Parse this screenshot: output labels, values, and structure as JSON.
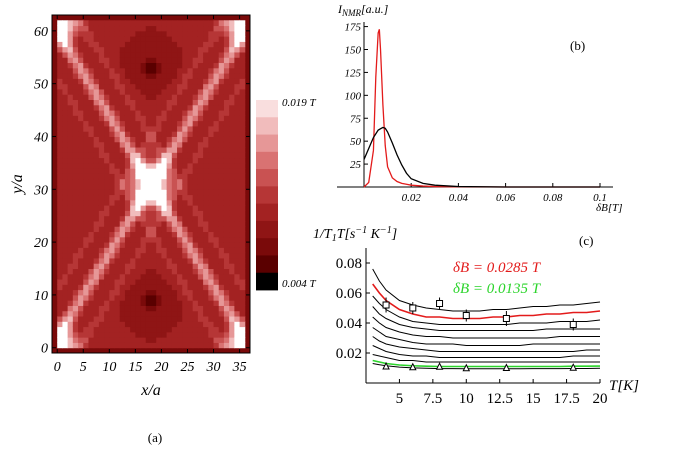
{
  "chart_data": [
    {
      "panel": "(a)",
      "type": "heatmap",
      "xlabel": "x/a",
      "ylabel": "y/a",
      "xticks": [
        "0",
        "5",
        "10",
        "15",
        "20",
        "25",
        "30",
        "35"
      ],
      "yticks": [
        "0",
        "10",
        "20",
        "30",
        "40",
        "50",
        "60"
      ],
      "xlim": [
        -1,
        37
      ],
      "ylim": [
        -1,
        63
      ],
      "colorbar": {
        "max_label": "0.019 T",
        "min_label": "0.004 T",
        "range_T": [
          0.004,
          0.019
        ],
        "steps": 10,
        "colors": [
          "#000000",
          "#5a0000",
          "#7a0a0a",
          "#8f1515",
          "#a32222",
          "#b63636",
          "#c95252",
          "#d97272",
          "#e69797",
          "#f1bcbc",
          "#f9dede"
        ]
      }
    },
    {
      "panel": "(b)",
      "type": "line",
      "ylabel": "I_NMR[a.u.]",
      "xlabel": "δB[T]",
      "xticks": [
        "0.02",
        "0.04",
        "0.06",
        "0.08",
        "0.1"
      ],
      "yticks": [
        "25",
        "50",
        "75",
        "100",
        "125",
        "150",
        "175"
      ],
      "xlim": [
        0,
        0.1
      ],
      "ylim": [
        0,
        180
      ],
      "series": [
        {
          "color": "#e31b1b",
          "x": [
            0,
            0.002,
            0.004,
            0.005,
            0.006,
            0.0065,
            0.007,
            0.008,
            0.009,
            0.01,
            0.012,
            0.014,
            0.016,
            0.018,
            0.02,
            0.025,
            0.03,
            0.04,
            0.06,
            0.1
          ],
          "values": [
            0,
            5,
            40,
            120,
            168,
            172,
            150,
            90,
            45,
            22,
            10,
            6,
            4,
            3,
            2,
            1,
            0.5,
            0.2,
            0,
            0
          ]
        },
        {
          "color": "#000000",
          "x": [
            0,
            0.002,
            0.004,
            0.006,
            0.008,
            0.009,
            0.01,
            0.012,
            0.014,
            0.016,
            0.018,
            0.02,
            0.025,
            0.03,
            0.04,
            0.06,
            0.1
          ],
          "values": [
            30,
            42,
            54,
            62,
            65,
            64,
            60,
            48,
            35,
            24,
            15,
            9,
            4,
            2,
            0.5,
            0,
            0
          ]
        }
      ]
    },
    {
      "panel": "(c)",
      "type": "line",
      "ylabel": "1/T1T[s^-1 K^-1]",
      "xlabel": "T[K]",
      "xticks": [
        "5",
        "7.5",
        "10",
        "12.5",
        "15",
        "17.5",
        "20"
      ],
      "yticks": [
        "0.02",
        "0.04",
        "0.06",
        "0.08"
      ],
      "xlim": [
        2.5,
        20
      ],
      "ylim": [
        0,
        0.09
      ],
      "annotations": [
        {
          "text": "δB = 0.0285 T",
          "color": "#e31b1b"
        },
        {
          "text": "δB = 0.0135 T",
          "color": "#2bd42b"
        }
      ],
      "x": [
        3,
        3.5,
        4,
        5,
        6,
        7,
        8,
        9,
        10,
        11,
        12,
        13,
        14,
        15,
        16,
        17,
        18,
        19,
        20
      ],
      "series": [
        {
          "color": "#000000",
          "values": [
            0.076,
            0.068,
            0.062,
            0.055,
            0.052,
            0.05,
            0.049,
            0.048,
            0.048,
            0.048,
            0.049,
            0.049,
            0.05,
            0.051,
            0.051,
            0.052,
            0.052,
            0.053,
            0.054
          ]
        },
        {
          "color": "#e31b1b",
          "values": [
            0.066,
            0.06,
            0.055,
            0.049,
            0.046,
            0.044,
            0.044,
            0.043,
            0.043,
            0.043,
            0.044,
            0.044,
            0.045,
            0.045,
            0.046,
            0.046,
            0.047,
            0.047,
            0.048
          ]
        },
        {
          "color": "#000000",
          "values": [
            0.058,
            0.053,
            0.049,
            0.044,
            0.041,
            0.04,
            0.039,
            0.039,
            0.039,
            0.039,
            0.039,
            0.039,
            0.04,
            0.04,
            0.04,
            0.041,
            0.041,
            0.041,
            0.042
          ]
        },
        {
          "color": "#000000",
          "values": [
            0.051,
            0.046,
            0.043,
            0.039,
            0.037,
            0.036,
            0.035,
            0.035,
            0.035,
            0.035,
            0.035,
            0.035,
            0.035,
            0.035,
            0.036,
            0.036,
            0.036,
            0.036,
            0.036
          ]
        },
        {
          "color": "#000000",
          "values": [
            0.044,
            0.04,
            0.037,
            0.034,
            0.032,
            0.031,
            0.031,
            0.03,
            0.03,
            0.03,
            0.03,
            0.03,
            0.03,
            0.03,
            0.03,
            0.031,
            0.031,
            0.031,
            0.031
          ]
        },
        {
          "color": "#000000",
          "values": [
            0.037,
            0.034,
            0.031,
            0.029,
            0.027,
            0.026,
            0.026,
            0.026,
            0.025,
            0.025,
            0.025,
            0.025,
            0.025,
            0.026,
            0.026,
            0.026,
            0.026,
            0.026,
            0.026
          ]
        },
        {
          "color": "#000000",
          "values": [
            0.031,
            0.028,
            0.026,
            0.024,
            0.023,
            0.022,
            0.021,
            0.021,
            0.021,
            0.021,
            0.021,
            0.021,
            0.021,
            0.021,
            0.021,
            0.021,
            0.021,
            0.022,
            0.022
          ]
        },
        {
          "color": "#000000",
          "values": [
            0.025,
            0.023,
            0.021,
            0.019,
            0.018,
            0.018,
            0.017,
            0.017,
            0.017,
            0.017,
            0.017,
            0.017,
            0.017,
            0.017,
            0.017,
            0.017,
            0.018,
            0.018,
            0.018
          ]
        },
        {
          "color": "#000000",
          "values": [
            0.019,
            0.018,
            0.017,
            0.015,
            0.015,
            0.014,
            0.014,
            0.014,
            0.014,
            0.014,
            0.014,
            0.014,
            0.014,
            0.014,
            0.014,
            0.014,
            0.014,
            0.014,
            0.014
          ]
        },
        {
          "color": "#2bd42b",
          "values": [
            0.015,
            0.014,
            0.013,
            0.012,
            0.0115,
            0.0112,
            0.011,
            0.011,
            0.011,
            0.011,
            0.011,
            0.011,
            0.011,
            0.011,
            0.011,
            0.011,
            0.0112,
            0.0112,
            0.0113
          ]
        },
        {
          "color": "#000000",
          "values": [
            0.013,
            0.0122,
            0.0115,
            0.0106,
            0.0101,
            0.0098,
            0.0096,
            0.0096,
            0.0095,
            0.0095,
            0.0095,
            0.0095,
            0.0095,
            0.0096,
            0.0096,
            0.0096,
            0.0097,
            0.0097,
            0.0098
          ]
        }
      ],
      "markers_square": {
        "x": [
          4,
          6,
          8,
          10,
          13,
          18
        ],
        "values": [
          0.052,
          0.05,
          0.053,
          0.045,
          0.043,
          0.039
        ],
        "err": [
          0.005,
          0.004,
          0.004,
          0.004,
          0.005,
          0.004
        ]
      },
      "markers_triangle": {
        "x": [
          4,
          6,
          8,
          10,
          13,
          18
        ],
        "values": [
          0.011,
          0.0105,
          0.0108,
          0.0098,
          0.01,
          0.0102
        ],
        "err": [
          0.001,
          0.001,
          0.001,
          0.001,
          0.001,
          0.001
        ]
      }
    }
  ],
  "labels": {
    "a": "(a)",
    "b": "(b)",
    "c": "(c)"
  }
}
